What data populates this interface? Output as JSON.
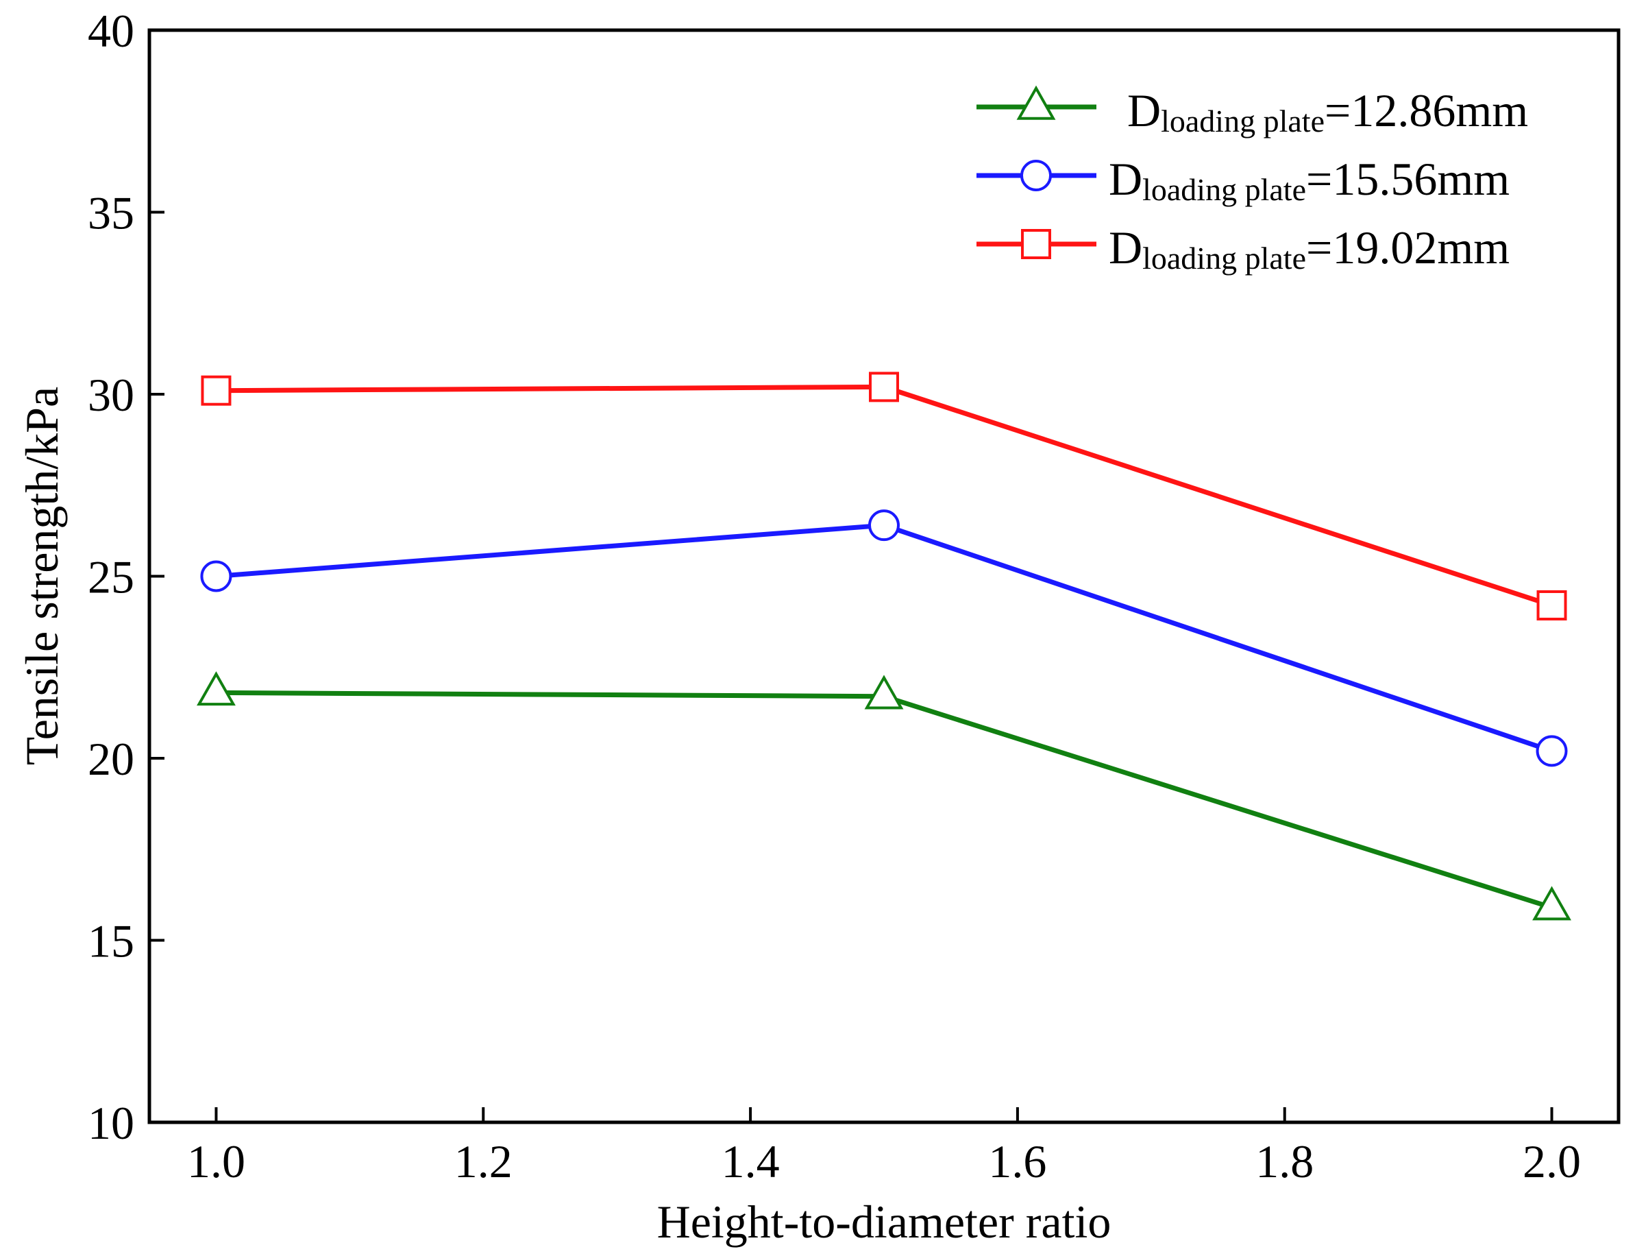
{
  "chart_data": {
    "type": "line",
    "title": "",
    "xlabel": "Height-to-diameter ratio",
    "ylabel": "Tensile strength/kPa",
    "xlim": [
      0.95,
      2.05
    ],
    "ylim": [
      10,
      40
    ],
    "xticks": [
      "1.0",
      "1.2",
      "1.4",
      "1.6",
      "1.8",
      "2.0"
    ],
    "yticks": [
      "10",
      "15",
      "20",
      "25",
      "30",
      "35",
      "40"
    ],
    "x": [
      1.0,
      1.5,
      2.0
    ],
    "legend_position": "top-right",
    "series": [
      {
        "name": "D loading plate=12.86mm",
        "legend_main": "D",
        "legend_sub": "loading plate",
        "legend_value": "=12.86mm",
        "color": "#118011",
        "marker": "triangle",
        "values": [
          21.8,
          21.7,
          15.9
        ]
      },
      {
        "name": "D loading plate=15.56mm",
        "legend_main": "D",
        "legend_sub": "loading plate",
        "legend_value": "=15.56mm",
        "color": "#1a1aff",
        "marker": "circle",
        "values": [
          25.0,
          26.4,
          20.2
        ]
      },
      {
        "name": "D loading plate=19.02mm",
        "legend_main": "D",
        "legend_sub": "loading plate",
        "legend_value": "=19.02mm",
        "color": "#ff1414",
        "marker": "square",
        "values": [
          30.1,
          30.2,
          24.2
        ]
      }
    ]
  }
}
